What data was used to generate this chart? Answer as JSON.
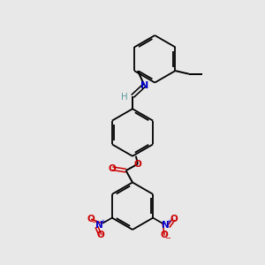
{
  "background_color": "#e8e8e8",
  "bond_color": "#000000",
  "n_color": "#0000cc",
  "o_color": "#cc0000",
  "h_color": "#5f9ea0",
  "figsize": [
    3.0,
    3.0
  ],
  "dpi": 100,
  "xlim": [
    0,
    10
  ],
  "ylim": [
    0,
    10
  ]
}
